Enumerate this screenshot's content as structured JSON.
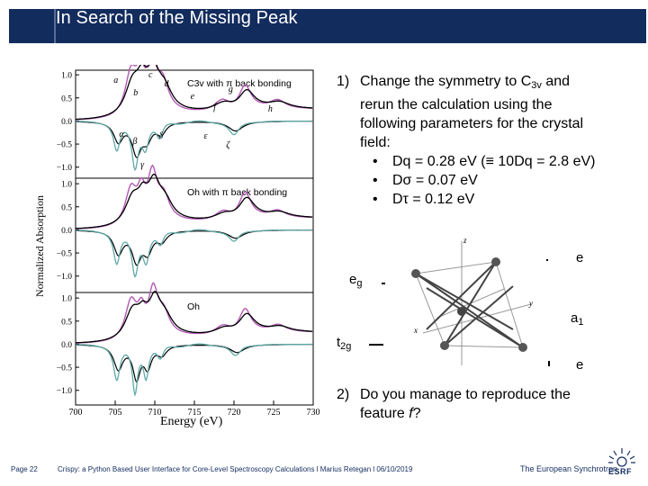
{
  "slide": {
    "title": "In Search of the Missing Peak"
  },
  "chart_data": {
    "type": "line",
    "xlabel": "Energy (eV)",
    "ylabel": "Normalized Absorption",
    "xlim": [
      700,
      730
    ],
    "x_ticks": [
      "700",
      "705",
      "710",
      "715",
      "720",
      "725",
      "730"
    ],
    "panels": [
      {
        "legend": "C3v with π back bonding",
        "y_ticks": [
          "1.0",
          "0.5",
          "0.0",
          "−0.5",
          "−1.0"
        ],
        "peak_labels": [
          "a",
          "b",
          "c",
          "d",
          "e",
          "f",
          "g",
          "h",
          "α",
          "β",
          "γ",
          "δ",
          "ε",
          "ζ"
        ]
      },
      {
        "legend": "Oh with π back bonding",
        "y_ticks": [
          "1.0",
          "0.5",
          "0.0",
          "−0.5",
          "−1.0"
        ]
      },
      {
        "legend": "Oh",
        "y_ticks": [
          "1.0",
          "0.5",
          "0.0",
          "−0.5",
          "−1.0"
        ]
      }
    ],
    "series_colors": {
      "experiment": "#000000",
      "simulation": "#b259b5",
      "dichroism": "#5fa9a6"
    }
  },
  "steps": {
    "step1_number": "1)",
    "step1_line1_a": "Change the symmetry to C",
    "step1_line1_sub": "3v",
    "step1_line1_b": " and",
    "step1_line2": "rerun the calculation using the",
    "step1_line3": "following parameters for the crystal",
    "step1_line4": "field:",
    "bullets": [
      "Dq = 0.28 eV (≡ 10Dq = 2.8 eV)",
      "Dσ = 0.07 eV",
      "Dτ = 0.12 eV"
    ],
    "step2_number": "2)",
    "step2_line1": "Do you manage to reproduce the",
    "step2_line2_a": "feature ",
    "step2_line2_em": "f",
    "step2_line2_b": "?"
  },
  "levels": {
    "eg_main": "e",
    "eg_sub": "g",
    "t2g_main": "t",
    "t2g_sub": "2g",
    "e_top": "e",
    "a1_main": "a",
    "a1_sub": "1",
    "e_bottom": "e"
  },
  "diagram": {
    "axis_z": "z",
    "axis_y": "y",
    "axis_x": "x"
  },
  "footer": {
    "page": "Page 22",
    "credit": "Crispy: a Python Based User Interface for Core-Level Spectroscopy Calculations l Marius Retegan l 06/10/2019",
    "org": "The European Synchrotron",
    "logo_text": "ESRF"
  }
}
